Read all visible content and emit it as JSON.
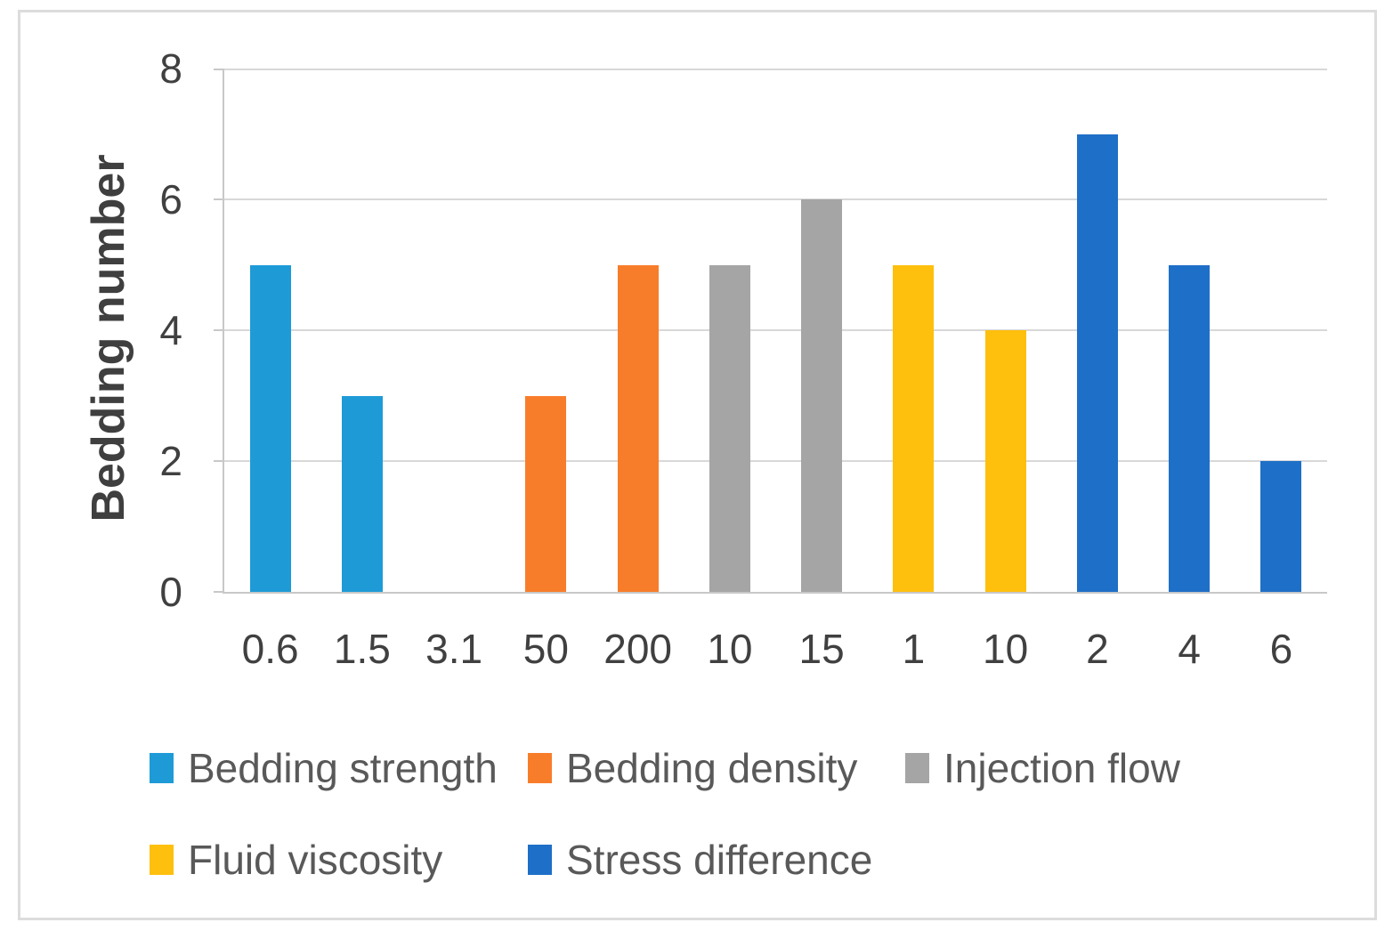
{
  "figure": {
    "background": "#FFFFFF",
    "border_color": "#DCDCDC"
  },
  "colors": {
    "gridline": "#D8D8D8",
    "axis_line": "#C8C8C8",
    "tick_label": "#404040",
    "axis_title": "#3F3F3F",
    "legend_text": "#595959"
  },
  "chart_data": {
    "type": "bar",
    "title": "",
    "ylabel": "Bedding number",
    "xlabel": "",
    "ylim": [
      0,
      8
    ],
    "yticks": [
      0,
      2,
      4,
      6,
      8
    ],
    "grid": true,
    "legend_position": "bottom",
    "categories": [
      "0.6",
      "1.5",
      "3.1",
      "50",
      "200",
      "10",
      "15",
      "1",
      "10",
      "2",
      "4",
      "6"
    ],
    "series": [
      {
        "name": "Bedding strength",
        "color": "#1E9BD7",
        "categories": [
          "0.6",
          "1.5",
          "3.1"
        ],
        "values": [
          5,
          3,
          0
        ]
      },
      {
        "name": "Bedding density",
        "color": "#F87D2B",
        "categories": [
          "50",
          "200"
        ],
        "values": [
          3,
          5
        ]
      },
      {
        "name": "Injection flow",
        "color": "#A5A5A5",
        "categories": [
          "10",
          "15"
        ],
        "values": [
          5,
          6
        ]
      },
      {
        "name": "Fluid viscosity",
        "color": "#FEBF0D",
        "categories": [
          "1",
          "10"
        ],
        "values": [
          5,
          4
        ]
      },
      {
        "name": "Stress difference",
        "color": "#1E6FC7",
        "categories": [
          "2",
          "4",
          "6"
        ],
        "values": [
          7,
          5,
          2
        ]
      }
    ],
    "legend_rows": [
      [
        "Bedding strength",
        "Bedding density",
        "Injection flow"
      ],
      [
        "Fluid viscosity",
        "Stress difference"
      ]
    ]
  }
}
